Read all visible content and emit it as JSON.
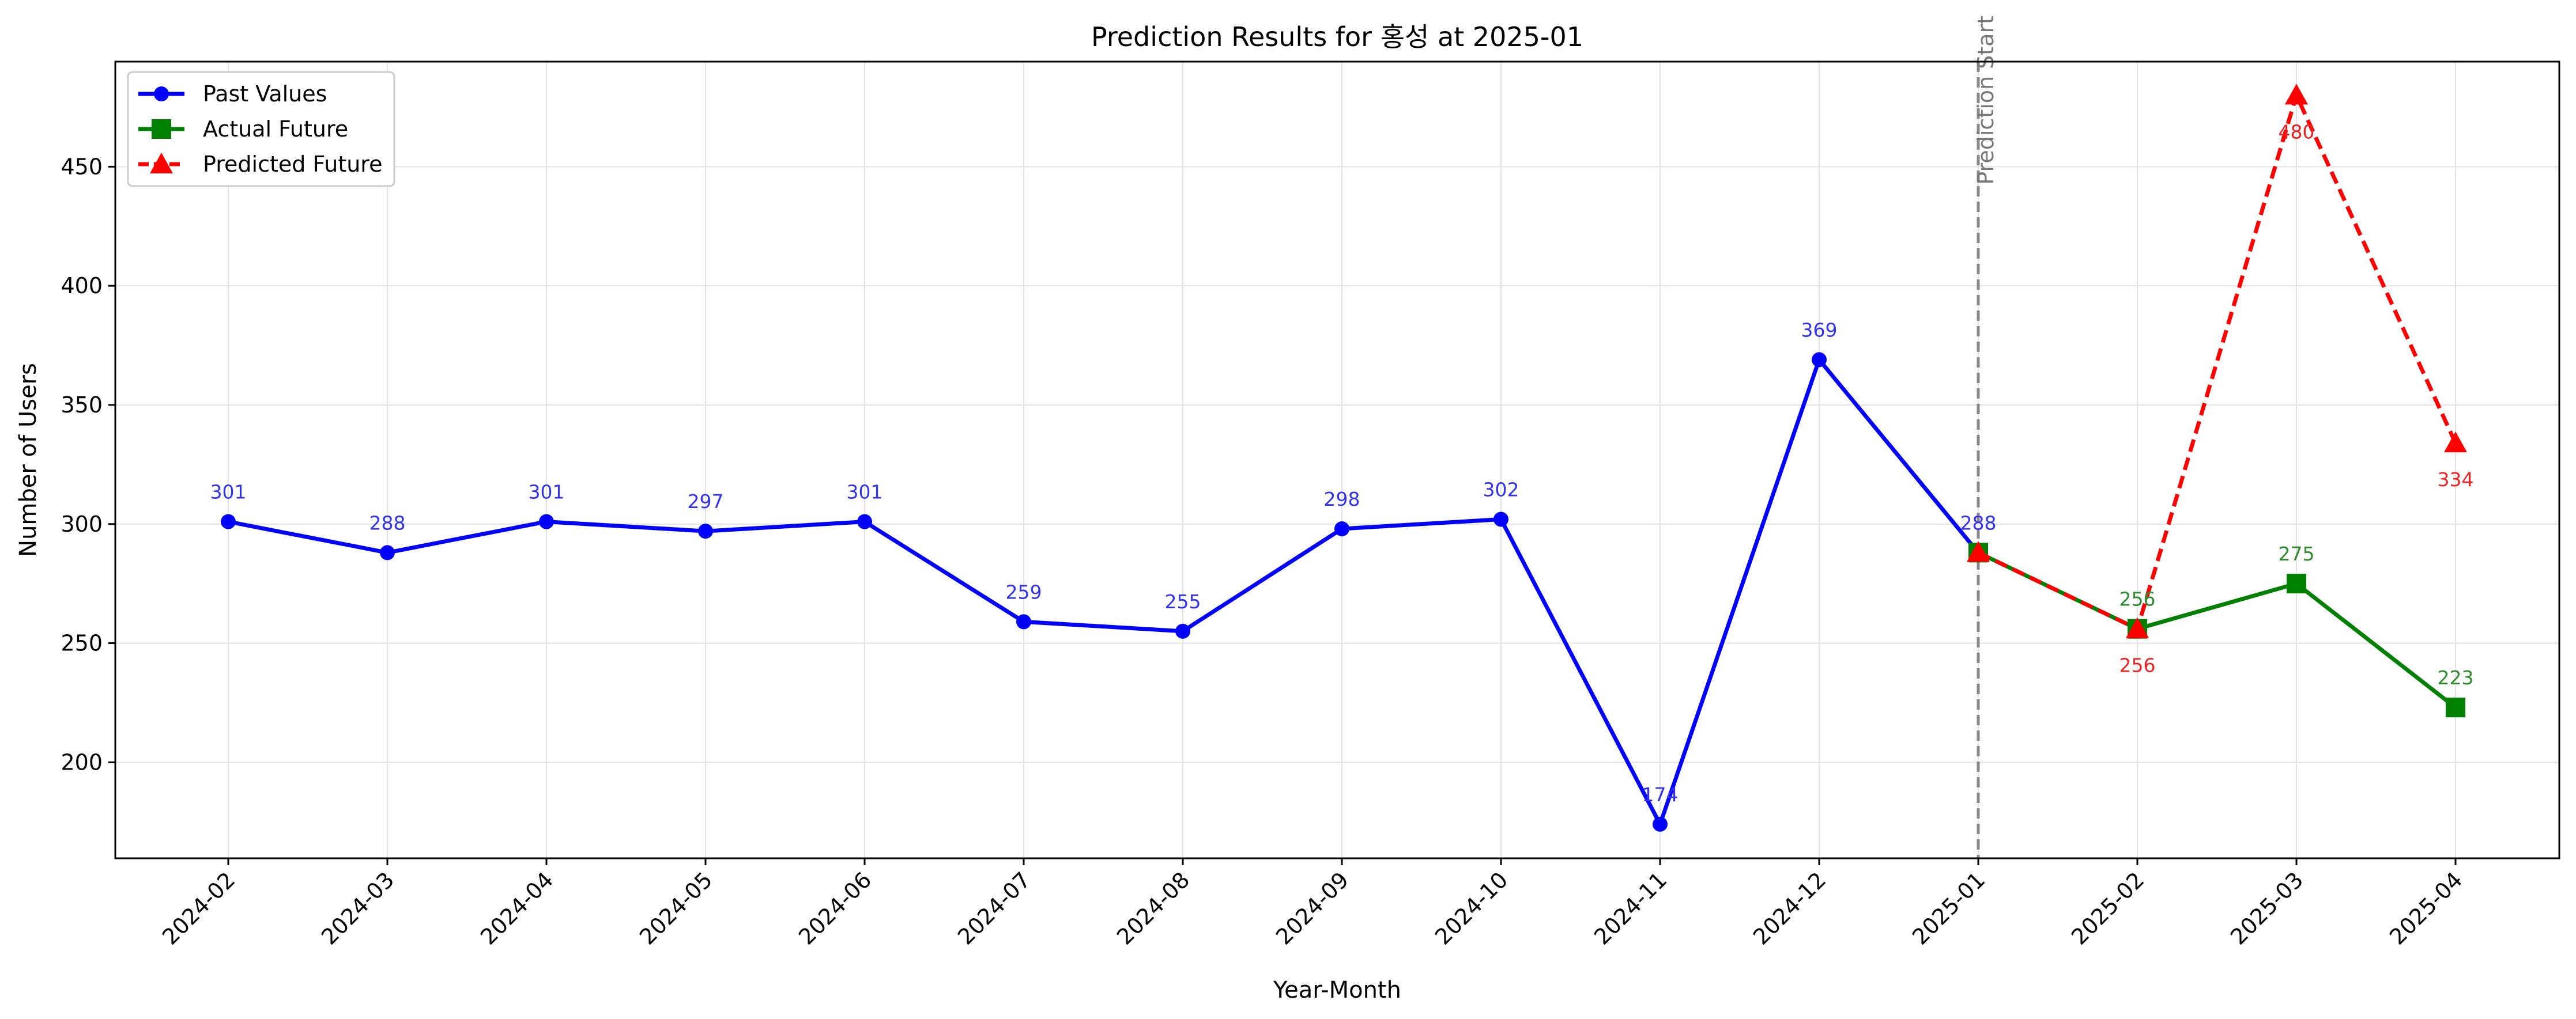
{
  "chart_data": {
    "type": "line",
    "title": "Prediction Results for 홍성 at 2025-01",
    "xlabel": "Year-Month",
    "ylabel": "Number of Users",
    "categories": [
      "2024-02",
      "2024-03",
      "2024-04",
      "2024-05",
      "2024-06",
      "2024-07",
      "2024-08",
      "2024-09",
      "2024-10",
      "2024-11",
      "2024-12",
      "2025-01",
      "2025-02",
      "2025-03",
      "2025-04"
    ],
    "yticks": [
      200,
      250,
      300,
      350,
      400,
      450
    ],
    "ylim": [
      159.7,
      494.1
    ],
    "grid": true,
    "legend_position": "top-left",
    "vertical_marker": {
      "category": "2025-01",
      "label": "Prediction Start",
      "color": "#888888"
    },
    "series": [
      {
        "name": "Past Values",
        "color": "#0000ff",
        "label_color": "#3333ee",
        "marker": "circle",
        "style": "solid",
        "x": [
          "2024-02",
          "2024-03",
          "2024-04",
          "2024-05",
          "2024-06",
          "2024-07",
          "2024-08",
          "2024-09",
          "2024-10",
          "2024-11",
          "2024-12",
          "2025-01"
        ],
        "values": [
          301,
          288,
          301,
          297,
          301,
          259,
          255,
          298,
          302,
          174,
          369,
          288
        ],
        "label_position": "above"
      },
      {
        "name": "Actual Future",
        "color": "#008000",
        "label_color": "#2e8b2e",
        "marker": "square",
        "style": "solid",
        "x": [
          "2025-01",
          "2025-02",
          "2025-03",
          "2025-04"
        ],
        "values": [
          288,
          256,
          275,
          223
        ],
        "labels": [
          "",
          "256",
          "275",
          "223"
        ],
        "label_position": "above"
      },
      {
        "name": "Predicted Future",
        "color": "#ff0000",
        "label_color": "#ee2222",
        "marker": "triangle",
        "style": "dashed",
        "x": [
          "2025-01",
          "2025-02",
          "2025-03",
          "2025-04"
        ],
        "values": [
          288,
          256,
          480,
          334
        ],
        "labels": [
          "",
          "256",
          "480",
          "334"
        ],
        "label_position": "below"
      }
    ]
  }
}
